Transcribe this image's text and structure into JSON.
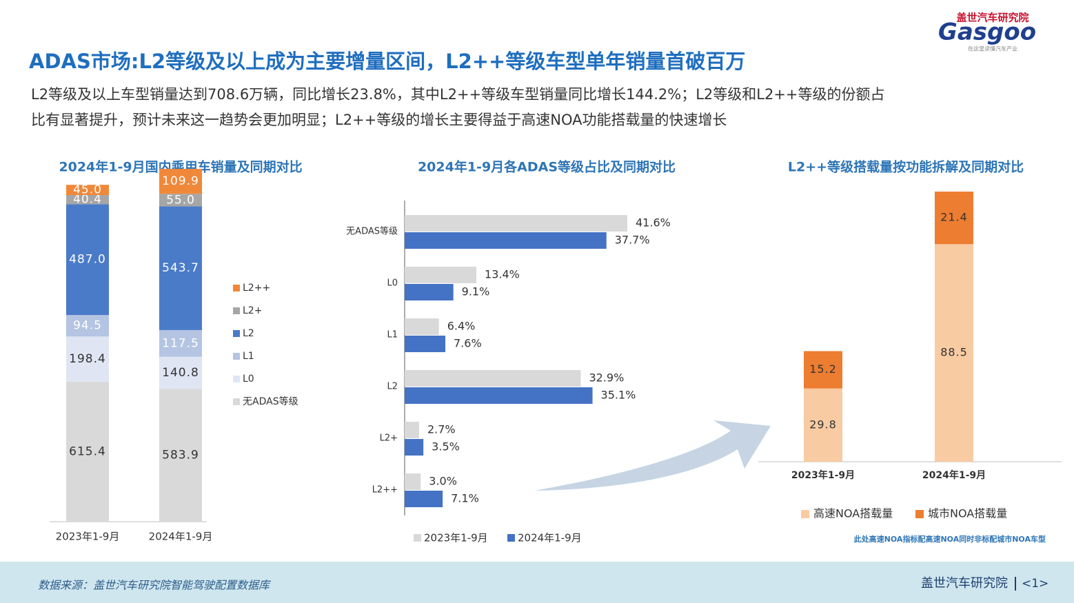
{
  "header": {
    "title": "ADAS市场:L2等级及以上成为主要增量区间，L2++等级车型单年销量首破百万",
    "subtitle_lines": [
      "L2等级及以上车型销量达到708.6万辆，同比增长23.8%，其中L2++等级车型销量同比增长144.2%；L2等级和L2++等级的份额占",
      "比有显著提升，预计未来这一趋势会更加明显；L2++等级的增长主要得益于高速NOA功能搭载量的快速增长"
    ],
    "logo_cn": "盖世汽车研究院",
    "logo_en": "Gasgoo",
    "logo_slogan": "在这里读懂汽车产业"
  },
  "chart_data": [
    {
      "type": "bar",
      "stacked": true,
      "title": "2024年1-9月国内乘用车销量及同期对比",
      "categories": [
        "2023年1-9月",
        "2024年1-9月"
      ],
      "series": [
        {
          "name": "无ADAS等级",
          "color": "#d9d9d9",
          "label_color": "#333333",
          "values": [
            615.4,
            583.9
          ],
          "value_labels": [
            "615.4",
            "583.9"
          ]
        },
        {
          "name": "L0",
          "color": "#dfe5f3",
          "label_color": "#333333",
          "values": [
            198.4,
            140.8
          ],
          "value_labels": [
            "198.4",
            "140.8"
          ]
        },
        {
          "name": "L1",
          "color": "#b4c4e2",
          "label_color": "#ffffff",
          "values": [
            94.5,
            117.5
          ],
          "value_labels": [
            "94.5",
            "117.5"
          ]
        },
        {
          "name": "L2",
          "color": "#4a7bc8",
          "label_color": "#ffffff",
          "values": [
            487.0,
            543.7
          ],
          "value_labels": [
            "487.0",
            "543.7"
          ]
        },
        {
          "name": "L2+",
          "color": "#a6a6a6",
          "label_color": "#ffffff",
          "values": [
            40.4,
            55.0
          ],
          "value_labels": [
            "40.4",
            "55.0"
          ]
        },
        {
          "name": "L2++",
          "color": "#f0883a",
          "label_color": "#ffffff",
          "values": [
            45.0,
            109.9
          ],
          "value_labels": [
            "45.0",
            "109.9"
          ]
        }
      ],
      "legend": "right"
    },
    {
      "type": "bar",
      "orientation": "horizontal",
      "title": "2024年1-9月各ADAS等级占比及同期对比",
      "categories": [
        "无ADAS等级",
        "L0",
        "L1",
        "L2",
        "L2+",
        "L2++"
      ],
      "series": [
        {
          "name": "2023年1-9月",
          "color": "#d9d9d9",
          "values": [
            41.6,
            13.4,
            6.4,
            32.9,
            2.7,
            3.0
          ],
          "value_labels": [
            "41.6%",
            "13.4%",
            "6.4%",
            "32.9%",
            "2.7%",
            "3.0%"
          ]
        },
        {
          "name": "2024年1-9月",
          "color": "#4472c4",
          "values": [
            37.7,
            9.1,
            7.6,
            35.1,
            3.5,
            7.1
          ],
          "value_labels": [
            "37.7%",
            "9.1%",
            "7.6%",
            "35.1%",
            "3.5%",
            "7.1%"
          ]
        }
      ],
      "legend": "bottom"
    },
    {
      "type": "bar",
      "stacked": true,
      "title": "L2++等级搭载量按功能拆解及同期对比",
      "categories": [
        "2023年1-9月",
        "2024年1-9月"
      ],
      "series": [
        {
          "name": "高速NOA搭载量",
          "color": "#f8cba3",
          "label_color": "#333333",
          "values": [
            29.8,
            88.5
          ],
          "value_labels": [
            "29.8",
            "88.5"
          ]
        },
        {
          "name": "城市NOA搭载量",
          "color": "#ed7d31",
          "label_color": "#333333",
          "values": [
            15.2,
            21.4
          ],
          "value_labels": [
            "15.2",
            "21.4"
          ]
        }
      ],
      "legend": "bottom",
      "note": "此处高速NOA指标配高速NOA同时非标配城市NOA车型"
    }
  ],
  "footer": {
    "source": "数据来源：盖世汽车研究院智能驾驶配置数据库",
    "brand": "盖世汽车研究院",
    "page": "<1>"
  }
}
